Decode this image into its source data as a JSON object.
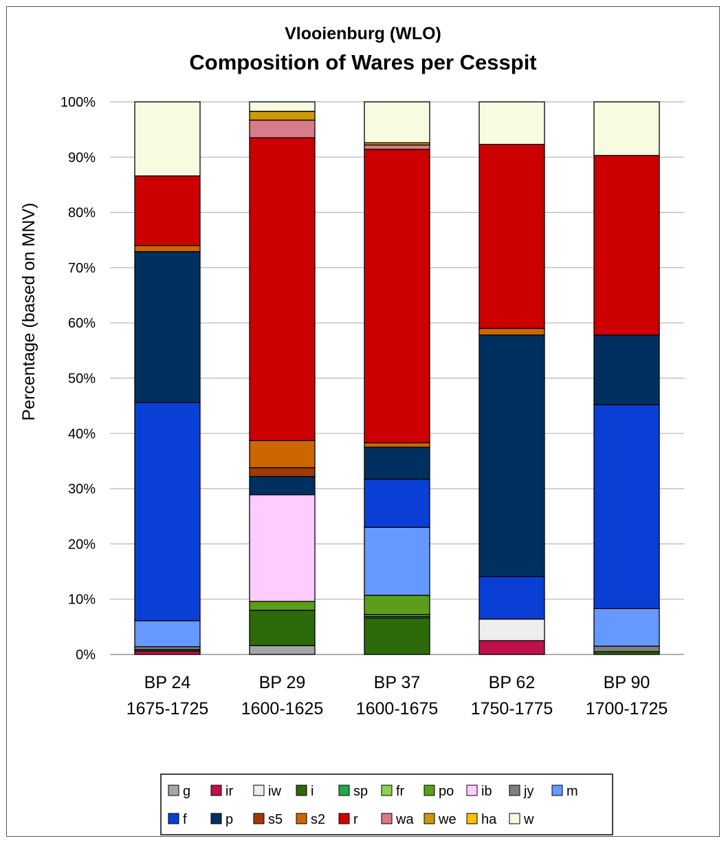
{
  "chart_data": {
    "type": "bar",
    "stacked": true,
    "title": "Vlooienburg (WLO)",
    "subtitle": "Composition of Wares per Cesspit",
    "ylabel": "Percentage (based on MNV)",
    "xlabel": "",
    "ylim": [
      0,
      100
    ],
    "yticks": [
      "0%",
      "10%",
      "20%",
      "30%",
      "40%",
      "50%",
      "60%",
      "70%",
      "80%",
      "90%",
      "100%"
    ],
    "grid": true,
    "legend_position": "bottom",
    "categories": [
      [
        "BP 24",
        "1675-1725"
      ],
      [
        "BP 29",
        "1600-1625"
      ],
      [
        "BP 37",
        "1600-1675"
      ],
      [
        "BP 62",
        "1750-1775"
      ],
      [
        "BP 90",
        "1700-1725"
      ]
    ],
    "series": [
      {
        "name": "g",
        "color": "#a6a6a6",
        "values": [
          0.0,
          1.6,
          0.0,
          0.0,
          0.0
        ]
      },
      {
        "name": "ir",
        "color": "#c0104a",
        "values": [
          0.6,
          0.0,
          0.0,
          2.5,
          0.0
        ]
      },
      {
        "name": "iw",
        "color": "#eeeeee",
        "values": [
          0.0,
          0.0,
          0.0,
          3.9,
          0.0
        ]
      },
      {
        "name": "i",
        "color": "#2d6a0a",
        "values": [
          0.3,
          6.4,
          6.6,
          0.0,
          0.5
        ]
      },
      {
        "name": "sp",
        "color": "#22a845",
        "values": [
          0.0,
          0.0,
          0.3,
          0.0,
          0.0
        ]
      },
      {
        "name": "fr",
        "color": "#92d050",
        "values": [
          0.0,
          0.0,
          0.3,
          0.0,
          0.0
        ]
      },
      {
        "name": "po",
        "color": "#5a9e1a",
        "values": [
          0.0,
          1.6,
          3.5,
          0.0,
          0.0
        ]
      },
      {
        "name": "ib",
        "color": "#ffccff",
        "values": [
          0.0,
          19.3,
          0.0,
          0.0,
          0.0
        ]
      },
      {
        "name": "jy",
        "color": "#808080",
        "values": [
          0.5,
          0.0,
          0.0,
          0.0,
          1.0
        ]
      },
      {
        "name": "m",
        "color": "#6699ff",
        "values": [
          4.7,
          0.0,
          12.3,
          0.0,
          6.8
        ]
      },
      {
        "name": "f",
        "color": "#0a3fd6",
        "values": [
          39.5,
          0.0,
          8.7,
          7.7,
          36.9
        ]
      },
      {
        "name": "p",
        "color": "#00305f",
        "values": [
          27.3,
          3.3,
          5.8,
          43.7,
          12.6
        ]
      },
      {
        "name": "s5",
        "color": "#9e3a0a",
        "values": [
          0.0,
          1.6,
          0.0,
          0.0,
          0.0
        ]
      },
      {
        "name": "s2",
        "color": "#cc6600",
        "values": [
          1.1,
          4.9,
          0.8,
          1.2,
          0.0
        ]
      },
      {
        "name": "r",
        "color": "#cc0000",
        "values": [
          12.6,
          54.8,
          53.1,
          33.3,
          32.5
        ]
      },
      {
        "name": "wa",
        "color": "#d97a88",
        "values": [
          0.0,
          3.2,
          0.8,
          0.0,
          0.0
        ]
      },
      {
        "name": "we",
        "color": "#cc9900",
        "values": [
          0.0,
          1.6,
          0.4,
          0.0,
          0.0
        ]
      },
      {
        "name": "ha",
        "color": "#ffc000",
        "values": [
          0.0,
          0.0,
          0.0,
          0.0,
          0.0
        ]
      },
      {
        "name": "w",
        "color": "#f7fce0",
        "values": [
          13.4,
          1.7,
          7.4,
          7.7,
          9.7
        ]
      }
    ]
  }
}
